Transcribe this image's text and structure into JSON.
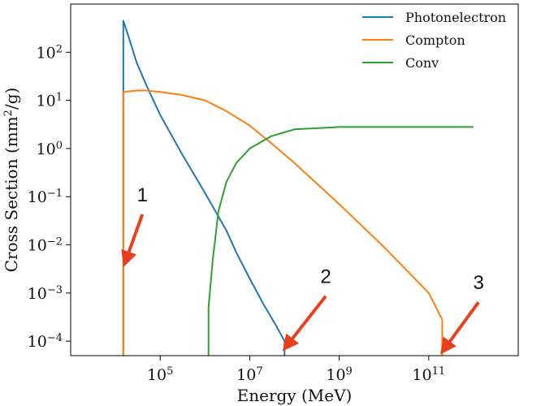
{
  "chart_data": {
    "type": "line",
    "xlabel": "Energy (MeV)",
    "ylabel_main": "Cross Section (mm",
    "ylabel_sup": "2",
    "ylabel_tail": "/g)",
    "x_scale": "log",
    "y_scale": "log",
    "xlim": [
      1000,
      10000000000000
    ],
    "ylim": [
      5e-05,
      1000
    ],
    "x_ticks": [
      {
        "value": 100000,
        "base": "10",
        "exp": "5"
      },
      {
        "value": 10000000,
        "base": "10",
        "exp": "7"
      },
      {
        "value": 1000000000,
        "base": "10",
        "exp": "9"
      },
      {
        "value": 100000000000,
        "base": "10",
        "exp": "11"
      }
    ],
    "y_ticks": [
      {
        "value": 100,
        "base": "10",
        "exp": "2"
      },
      {
        "value": 10,
        "base": "10",
        "exp": "1"
      },
      {
        "value": 1,
        "base": "10",
        "exp": "0"
      },
      {
        "value": 0.1,
        "base": "10",
        "exp": "−1"
      },
      {
        "value": 0.01,
        "base": "10",
        "exp": "−2"
      },
      {
        "value": 0.001,
        "base": "10",
        "exp": "−3"
      },
      {
        "value": 0.0001,
        "base": "10",
        "exp": "−4"
      }
    ],
    "grid": false,
    "legend_position": "top-right",
    "series": [
      {
        "name": "Photonelectron",
        "color": "#1f77b4",
        "points": [
          [
            15000,
            5e-05
          ],
          [
            15000,
            15
          ],
          [
            15000,
            450
          ],
          [
            20000,
            200
          ],
          [
            30000,
            60
          ],
          [
            50000,
            20
          ],
          [
            100000,
            5
          ],
          [
            300000,
            0.8
          ],
          [
            1000000,
            0.12
          ],
          [
            3000000,
            0.02
          ],
          [
            5000000,
            0.007
          ],
          [
            10000000,
            0.002
          ],
          [
            20000000,
            0.0006
          ],
          [
            40000000,
            0.0002
          ],
          [
            60000000,
            0.0001
          ],
          [
            60000000,
            5e-05
          ]
        ]
      },
      {
        "name": "Compton",
        "color": "#ff7f0e",
        "points": [
          [
            15000,
            5e-05
          ],
          [
            15000,
            15
          ],
          [
            30000,
            16
          ],
          [
            50000,
            16
          ],
          [
            100000,
            15
          ],
          [
            300000,
            13
          ],
          [
            1000000,
            10
          ],
          [
            3000000,
            6
          ],
          [
            10000000,
            3
          ],
          [
            30000000,
            1.3
          ],
          [
            100000000,
            0.5
          ],
          [
            1000000000,
            0.07
          ],
          [
            10000000000,
            0.009
          ],
          [
            100000000000,
            0.001
          ],
          [
            200000000000,
            0.00028
          ],
          [
            200000000000,
            5e-05
          ]
        ]
      },
      {
        "name": "Conv",
        "color": "#2ca02c",
        "points": [
          [
            1200000,
            5e-05
          ],
          [
            1200000,
            0.0005
          ],
          [
            1500000,
            0.005
          ],
          [
            2000000,
            0.05
          ],
          [
            3000000,
            0.2
          ],
          [
            5000000,
            0.5
          ],
          [
            10000000,
            1
          ],
          [
            30000000,
            1.8
          ],
          [
            100000000,
            2.5
          ],
          [
            1000000000,
            2.8
          ],
          [
            10000000000,
            2.8
          ],
          [
            100000000000,
            2.8
          ],
          [
            1000000000000,
            2.8
          ]
        ]
      }
    ],
    "annotations": [
      {
        "text": "1",
        "color": "#e8401c",
        "target": [
          16000,
          0.004
        ],
        "label_at": [
          40000,
          0.08
        ]
      },
      {
        "text": "2",
        "color": "#e8401c",
        "target": [
          60000000,
          7e-05
        ],
        "label_at": [
          500000000,
          0.0016
        ]
      },
      {
        "text": "3",
        "color": "#e8401c",
        "target": [
          200000000000,
          6e-05
        ],
        "label_at": [
          1300000000000,
          0.0012
        ]
      }
    ]
  }
}
